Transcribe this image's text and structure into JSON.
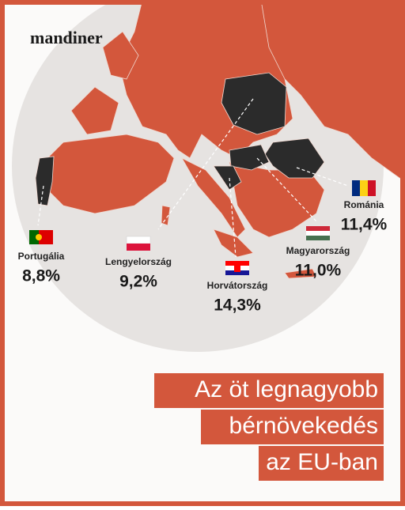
{
  "brand": "mandiner",
  "title": [
    "Az öt legnagyobb",
    "bérnövekedés",
    "az EU-ban"
  ],
  "countries": [
    {
      "name": "Portugália",
      "value": "8,8%"
    },
    {
      "name": "Lengyelország",
      "value": "9,2%"
    },
    {
      "name": "Horvátország",
      "value": "14,3%"
    },
    {
      "name": "Magyarország",
      "value": "11,0%"
    },
    {
      "name": "Románia",
      "value": "11,4%"
    }
  ]
}
